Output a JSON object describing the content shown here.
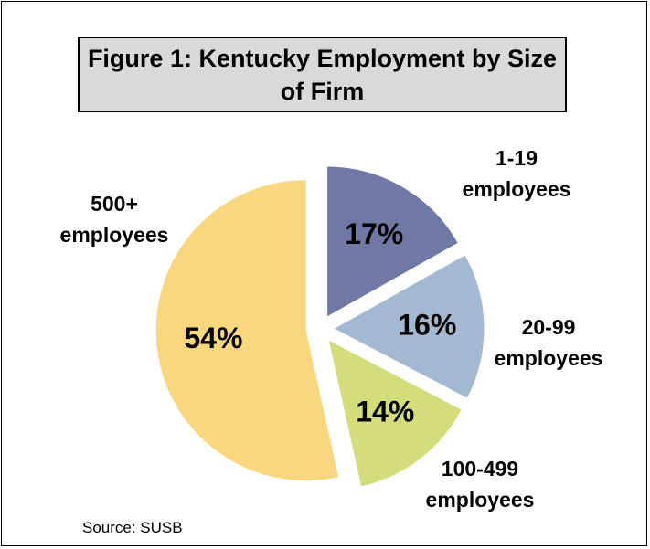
{
  "chart_data": {
    "type": "pie",
    "title": "Figure 1: Kentucky Employment by Size of Firm",
    "categories": [
      "1-19 employees",
      "20-99 employees",
      "100-499 employees",
      "500+ employees"
    ],
    "values": [
      17,
      16,
      14,
      54
    ],
    "value_labels": [
      "17%",
      "16%",
      "14%",
      "54%"
    ],
    "colors": [
      "#7079a5",
      "#a3b9d2",
      "#d4dc7c",
      "#f9d77e"
    ],
    "source": "Source: SUSB"
  }
}
